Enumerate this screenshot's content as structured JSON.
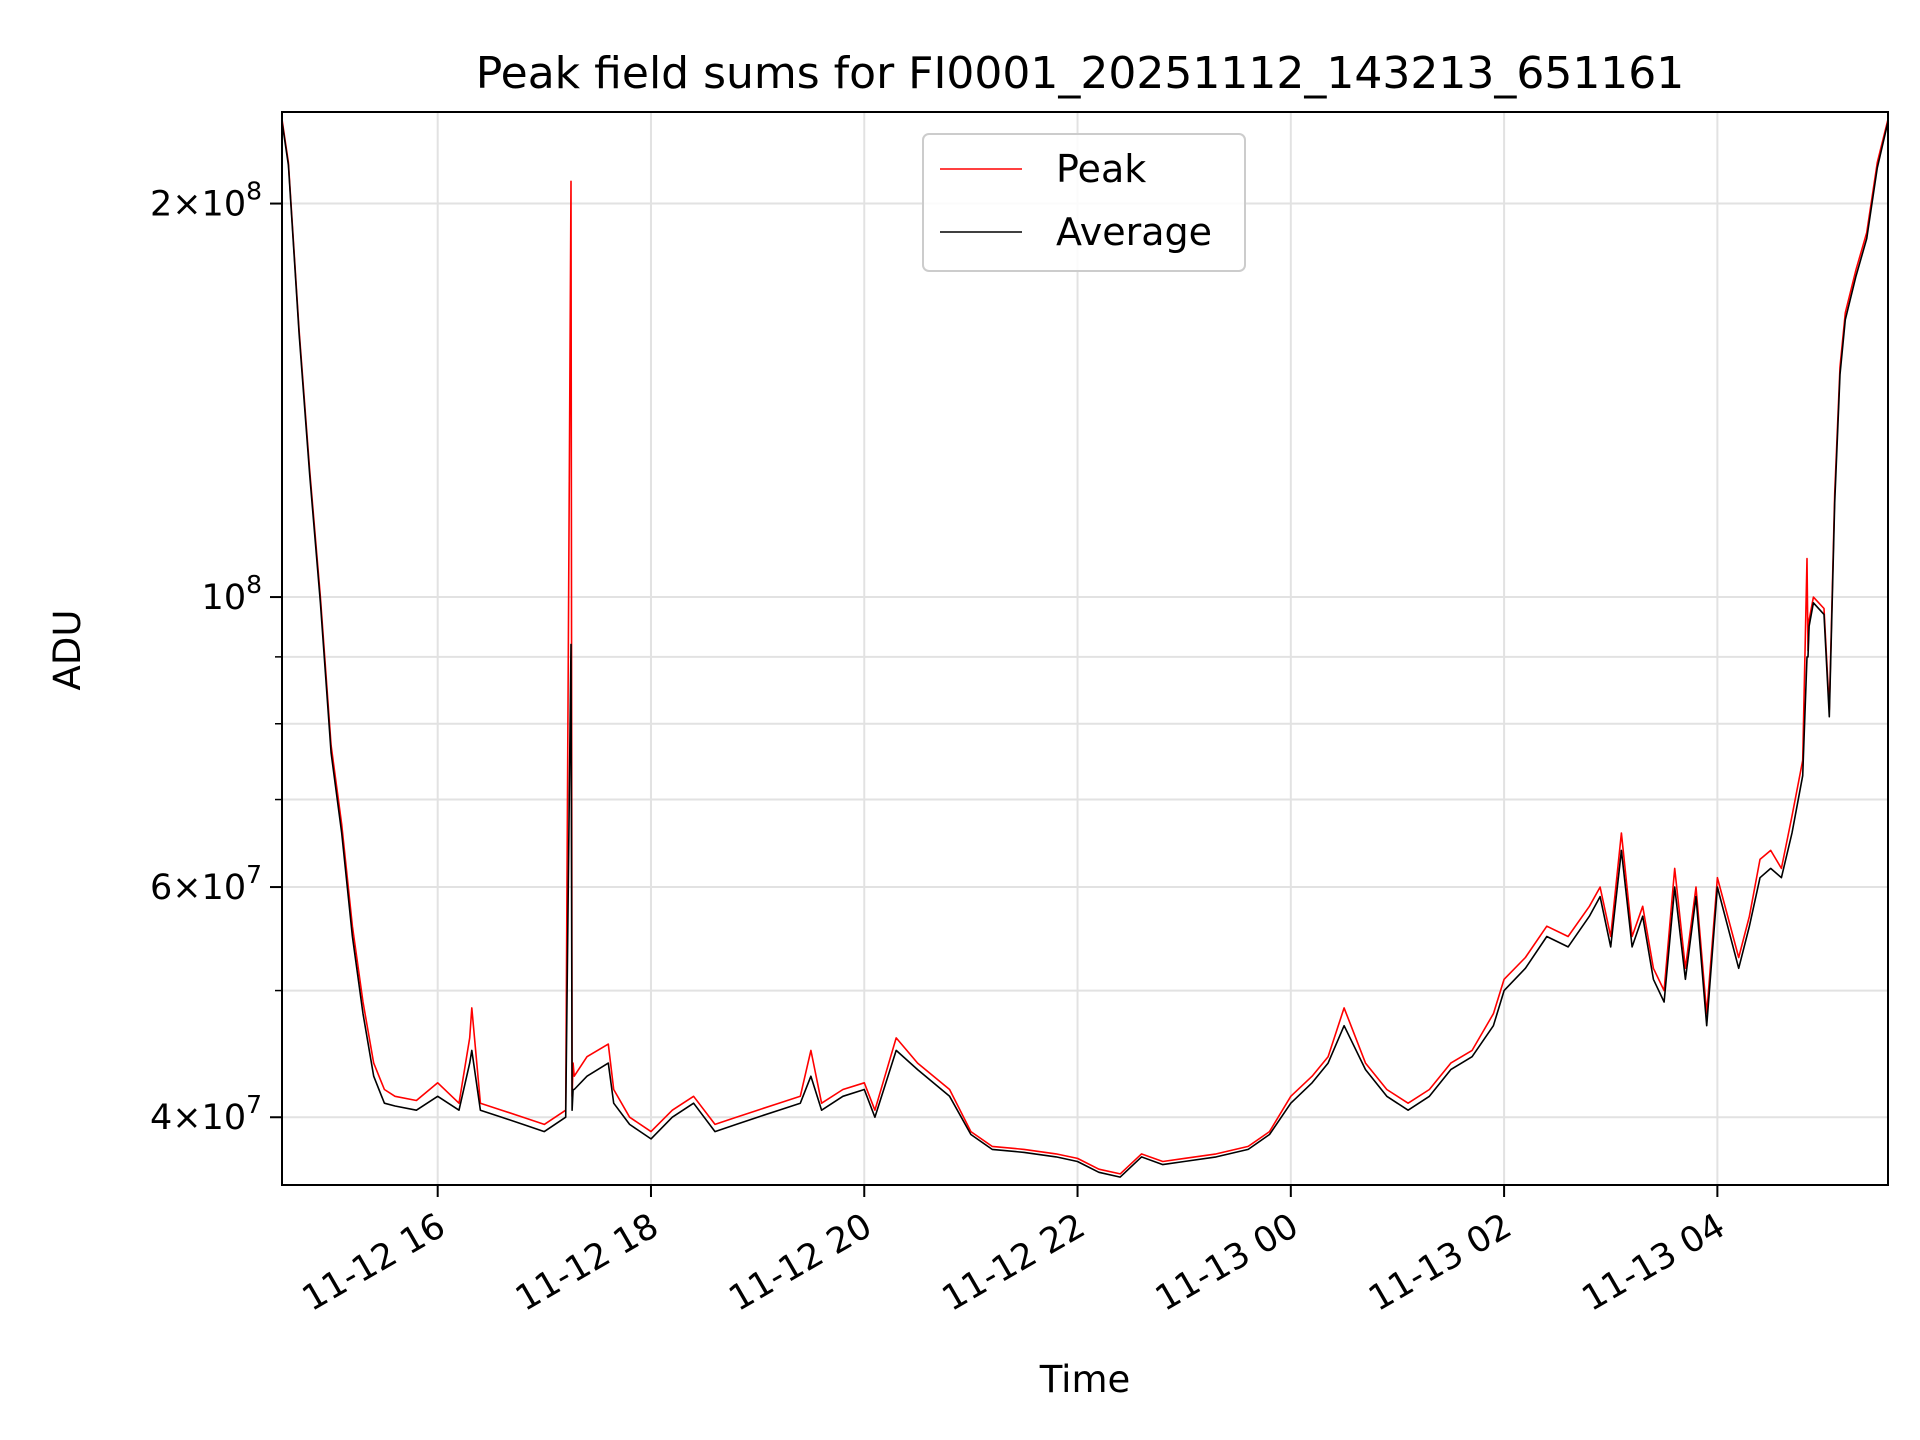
{
  "chart_data": {
    "type": "line",
    "title": "Peak field sums for FI0001_20251112_143213_651161",
    "xlabel": "Time",
    "ylabel": "ADU",
    "yscale": "log",
    "ylim": [
      35500000,
      235000000
    ],
    "xlim_hours": [
      14.54,
      29.6
    ],
    "x_ticks": [
      {
        "hour": 16,
        "label": "11-12 16"
      },
      {
        "hour": 18,
        "label": "11-12 18"
      },
      {
        "hour": 20,
        "label": "11-12 20"
      },
      {
        "hour": 22,
        "label": "11-12 22"
      },
      {
        "hour": 24,
        "label": "11-13 00"
      },
      {
        "hour": 26,
        "label": "11-13 02"
      },
      {
        "hour": 28,
        "label": "11-13 04"
      }
    ],
    "y_ticks": [
      {
        "value": 40000000,
        "mant": "4",
        "exp": "7"
      },
      {
        "value": 60000000,
        "mant": "6",
        "exp": "7"
      },
      {
        "value": 100000000,
        "mant": "",
        "exp": "8"
      },
      {
        "value": 200000000,
        "mant": "2",
        "exp": "8"
      }
    ],
    "y_minor_ticks": [
      50000000,
      70000000,
      80000000,
      90000000
    ],
    "legend": [
      {
        "name": "Peak",
        "color": "#ff0000"
      },
      {
        "name": "Average",
        "color": "#000000"
      }
    ],
    "legend_position": "upper center",
    "series": [
      {
        "name": "Peak",
        "color": "#ff0000",
        "x_hours": [
          14.54,
          14.6,
          14.7,
          14.8,
          14.9,
          15.0,
          15.1,
          15.2,
          15.3,
          15.4,
          15.5,
          15.6,
          15.8,
          16.0,
          16.2,
          16.3,
          16.32,
          16.4,
          16.6,
          16.8,
          17.0,
          17.2,
          17.25,
          17.26,
          17.27,
          17.28,
          17.4,
          17.6,
          17.65,
          17.8,
          18.0,
          18.2,
          18.4,
          18.6,
          18.8,
          19.0,
          19.2,
          19.4,
          19.5,
          19.6,
          19.8,
          20.0,
          20.1,
          20.3,
          20.5,
          20.8,
          21.0,
          21.2,
          21.5,
          21.8,
          22.0,
          22.2,
          22.4,
          22.6,
          22.8,
          23.0,
          23.3,
          23.6,
          23.8,
          24.0,
          24.2,
          24.35,
          24.5,
          24.7,
          24.9,
          25.1,
          25.3,
          25.5,
          25.7,
          25.9,
          26.0,
          26.2,
          26.4,
          26.6,
          26.8,
          26.9,
          27.0,
          27.1,
          27.2,
          27.3,
          27.4,
          27.5,
          27.6,
          27.7,
          27.8,
          27.9,
          28.0,
          28.2,
          28.3,
          28.4,
          28.5,
          28.6,
          28.7,
          28.8,
          28.84,
          28.85,
          28.86,
          28.9,
          29.0,
          29.05,
          29.1,
          29.15,
          29.2,
          29.3,
          29.4,
          29.5,
          29.6
        ],
        "y": [
          232000000,
          215000000,
          160000000,
          125000000,
          100000000,
          77000000,
          67000000,
          56000000,
          49000000,
          44000000,
          42000000,
          41500000,
          41200000,
          42500000,
          41000000,
          46000000,
          48500000,
          41000000,
          40500000,
          40000000,
          39500000,
          40500000,
          208000000,
          41500000,
          44000000,
          43000000,
          44500000,
          45500000,
          42000000,
          40000000,
          39000000,
          40500000,
          41500000,
          39500000,
          40000000,
          40500000,
          41000000,
          41500000,
          45000000,
          41000000,
          42000000,
          42500000,
          40500000,
          46000000,
          44000000,
          42000000,
          39000000,
          38000000,
          37800000,
          37500000,
          37200000,
          36500000,
          36200000,
          37500000,
          37000000,
          37200000,
          37500000,
          38000000,
          39000000,
          41500000,
          43000000,
          44500000,
          48500000,
          44000000,
          42000000,
          41000000,
          42000000,
          44000000,
          45000000,
          48000000,
          51000000,
          53000000,
          56000000,
          55000000,
          58000000,
          60000000,
          55000000,
          66000000,
          55000000,
          58000000,
          52000000,
          50000000,
          62000000,
          52000000,
          60000000,
          48000000,
          61000000,
          53000000,
          57000000,
          63000000,
          64000000,
          62000000,
          68000000,
          75000000,
          107000000,
          91000000,
          96000000,
          100000000,
          98000000,
          82000000,
          120000000,
          150000000,
          165000000,
          178000000,
          190000000,
          215000000,
          232000000
        ]
      },
      {
        "name": "Average",
        "color": "#000000",
        "x_hours": [
          14.54,
          14.6,
          14.7,
          14.8,
          14.9,
          15.0,
          15.1,
          15.2,
          15.3,
          15.4,
          15.5,
          15.6,
          15.8,
          16.0,
          16.2,
          16.3,
          16.32,
          16.4,
          16.6,
          16.8,
          17.0,
          17.2,
          17.25,
          17.26,
          17.27,
          17.28,
          17.4,
          17.6,
          17.65,
          17.8,
          18.0,
          18.2,
          18.4,
          18.6,
          18.8,
          19.0,
          19.2,
          19.4,
          19.5,
          19.6,
          19.8,
          20.0,
          20.1,
          20.3,
          20.5,
          20.8,
          21.0,
          21.2,
          21.5,
          21.8,
          22.0,
          22.2,
          22.4,
          22.6,
          22.8,
          23.0,
          23.3,
          23.6,
          23.8,
          24.0,
          24.2,
          24.35,
          24.5,
          24.7,
          24.9,
          25.1,
          25.3,
          25.5,
          25.7,
          25.9,
          26.0,
          26.2,
          26.4,
          26.6,
          26.8,
          26.9,
          27.0,
          27.1,
          27.2,
          27.3,
          27.4,
          27.5,
          27.6,
          27.7,
          27.8,
          27.9,
          28.0,
          28.2,
          28.3,
          28.4,
          28.5,
          28.6,
          28.7,
          28.8,
          28.84,
          28.85,
          28.86,
          28.9,
          29.0,
          29.05,
          29.1,
          29.15,
          29.2,
          29.3,
          29.4,
          29.5,
          29.6
        ],
        "y": [
          231000000,
          214000000,
          159000000,
          124000000,
          99000000,
          76000000,
          66000000,
          55000000,
          48000000,
          43000000,
          41000000,
          40800000,
          40500000,
          41500000,
          40500000,
          44000000,
          45000000,
          40500000,
          40000000,
          39500000,
          39000000,
          40000000,
          92000000,
          40500000,
          42000000,
          42000000,
          43000000,
          44000000,
          41000000,
          39500000,
          38500000,
          40000000,
          41000000,
          39000000,
          39500000,
          40000000,
          40500000,
          41000000,
          43000000,
          40500000,
          41500000,
          42000000,
          40000000,
          45000000,
          43500000,
          41500000,
          38800000,
          37800000,
          37600000,
          37300000,
          37000000,
          36300000,
          36000000,
          37300000,
          36800000,
          37000000,
          37300000,
          37800000,
          38800000,
          41000000,
          42500000,
          44000000,
          47000000,
          43500000,
          41500000,
          40500000,
          41500000,
          43500000,
          44500000,
          47000000,
          50000000,
          52000000,
          55000000,
          54000000,
          57000000,
          59000000,
          54000000,
          64000000,
          54000000,
          57000000,
          51000000,
          49000000,
          60000000,
          51000000,
          59000000,
          47000000,
          60000000,
          52000000,
          56000000,
          61000000,
          62000000,
          61000000,
          66000000,
          73000000,
          90000000,
          90000000,
          95000000,
          99000000,
          97000000,
          81000000,
          118000000,
          148000000,
          163000000,
          176000000,
          188000000,
          213000000,
          231000000
        ]
      }
    ]
  }
}
